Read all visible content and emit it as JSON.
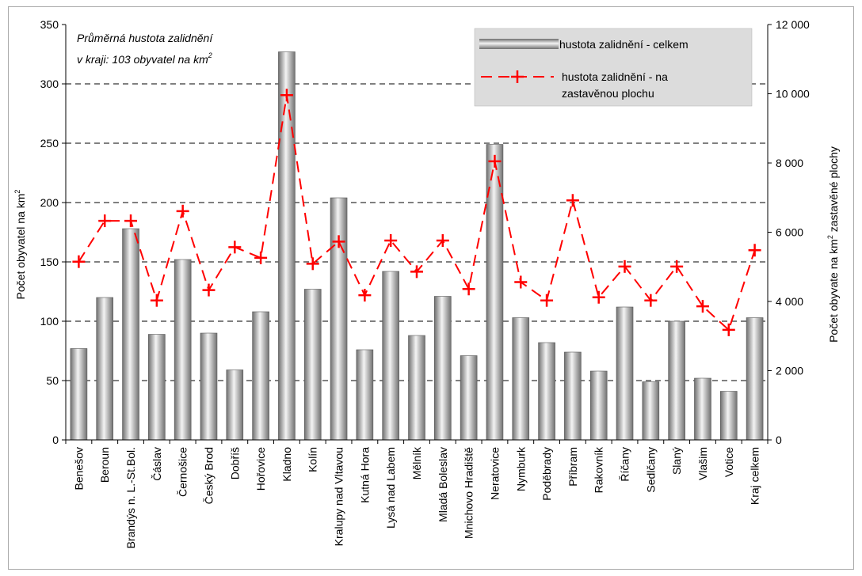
{
  "chart_data": {
    "type": "bar",
    "categories": [
      "Benešov",
      "Beroun",
      "Brandýs n. L.-St.Bol.",
      "Čáslav",
      "Černošice",
      "Český Brod",
      "Dobříš",
      "Hořovice",
      "Kladno",
      "Kolín",
      "Kralupy nad Vltavou",
      "Kutná Hora",
      "Lysá nad Labem",
      "Mělník",
      "Mladá Boleslav",
      "Mnichovo Hradiště",
      "Neratovice",
      "Nymburk",
      "Poděbrady",
      "Příbram",
      "Rakovník",
      "Říčany",
      "Sedlčany",
      "Slaný",
      "Vlašim",
      "Votice",
      "Kraj celkem"
    ],
    "series": [
      {
        "name": "hustota zalidnění - celkem",
        "axis": "left",
        "style": "bar",
        "values": [
          77,
          120,
          178,
          89,
          152,
          90,
          59,
          108,
          327,
          127,
          204,
          76,
          142,
          88,
          121,
          71,
          249,
          103,
          82,
          74,
          58,
          112,
          49,
          100,
          52,
          41,
          103
        ]
      },
      {
        "name": "hustota zalidnění - na zastavěnou plochu",
        "axis": "right",
        "style": "line-dashed-plus",
        "values": [
          5150,
          6330,
          6330,
          4030,
          6610,
          4330,
          5570,
          5260,
          9960,
          5090,
          5730,
          4180,
          5760,
          4860,
          5760,
          4360,
          8050,
          4560,
          4030,
          6920,
          4120,
          5010,
          4030,
          5010,
          3860,
          3180,
          5480
        ]
      }
    ],
    "ylabel": "Počet obyvatel na km",
    "ylabel_sup": "2",
    "y2label_pre": "Počet obyvate na km",
    "y2label_sup": "2",
    "y2label_post": " zastavěné plochy",
    "ylim": [
      0,
      350
    ],
    "yticks": [
      "0",
      "50",
      "100",
      "150",
      "200",
      "250",
      "300",
      "350"
    ],
    "y2lim": [
      0,
      12000
    ],
    "y2ticks": [
      "0",
      "2 000",
      "4 000",
      "6 000",
      "8 000",
      "10 000",
      "12 000"
    ],
    "grid": "horizontal dashed",
    "legend_position": "top-right",
    "annotation": {
      "line1": "Průměrná hustota zalidnění",
      "line2": "v kraji: 103 obyvatel na km",
      "line2_sup": "2"
    },
    "colors": {
      "bar_dark": "#6e6e6e",
      "bar_light": "#f4f4f4",
      "line": "#ff0000",
      "grid": "#000000",
      "legend_bg": "#dcdcdc"
    }
  }
}
